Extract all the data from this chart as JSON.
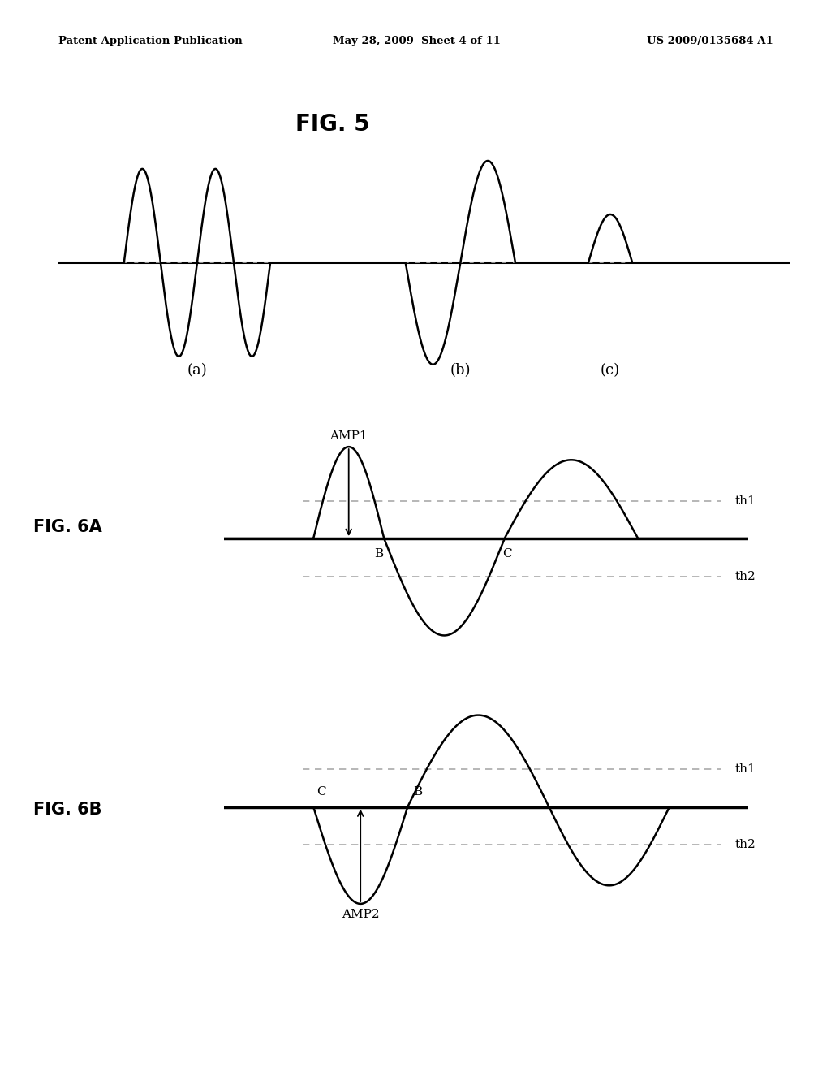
{
  "header_left": "Patent Application Publication",
  "header_mid": "May 28, 2009  Sheet 4 of 11",
  "header_right": "US 2009/0135684 A1",
  "fig5_title": "FIG. 5",
  "fig6a_label": "FIG. 6A",
  "fig6b_label": "FIG. 6B",
  "label_a": "(a)",
  "label_b": "(b)",
  "label_c": "(c)",
  "label_B": "B",
  "label_C": "C",
  "label_AMP1": "AMP1",
  "label_AMP2": "AMP2",
  "label_th1": "th1",
  "label_th2": "th2",
  "bg_color": "#ffffff",
  "line_color": "#000000",
  "dashed_color": "#aaaaaa"
}
